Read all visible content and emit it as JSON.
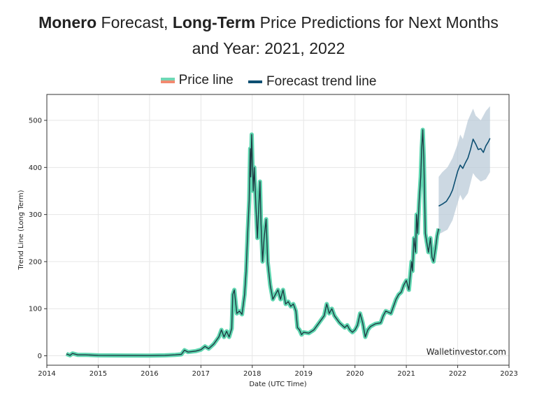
{
  "title": {
    "part1_bold": "Monero",
    "part2": " Forecast, ",
    "part3_bold": "Long-Term",
    "part4": " Price Predictions for Next Months",
    "line2": "and Year: 2021, 2022"
  },
  "colors": {
    "price_line": "#1f3b44",
    "price_halo": "#5fd6b0",
    "forecast_line": "#0d4f72",
    "forecast_band": "#b7c8d6",
    "grid": "#e6e6e6"
  },
  "chart_data": {
    "type": "line",
    "title": "Monero Forecast, Long-Term Price Predictions for Next Months and Year: 2021, 2022",
    "xlabel": "Date (UTC Time)",
    "ylabel": "Trend Line (Long Term)",
    "xlim": [
      2014,
      2023
    ],
    "ylim": [
      -20,
      555
    ],
    "x_ticks": [
      2014,
      2015,
      2016,
      2017,
      2018,
      2019,
      2020,
      2021,
      2022,
      2023
    ],
    "x_tick_labels": [
      "2014",
      "2015",
      "2016",
      "2017",
      "2018",
      "2019",
      "2020",
      "2021",
      "2022",
      "2023"
    ],
    "y_ticks": [
      0,
      100,
      200,
      300,
      400,
      500
    ],
    "y_tick_labels": [
      "0",
      "100",
      "200",
      "300",
      "400",
      "500"
    ],
    "grid": true,
    "legend": {
      "position": "top",
      "entries": [
        "Price line",
        "Forecast trend line"
      ]
    },
    "annotation": "Walletinvestor.com",
    "series": [
      {
        "name": "Price line",
        "points": [
          [
            2014.38,
            4
          ],
          [
            2014.45,
            1
          ],
          [
            2014.5,
            5
          ],
          [
            2014.6,
            2
          ],
          [
            2014.75,
            2
          ],
          [
            2015.0,
            1
          ],
          [
            2015.5,
            0.6
          ],
          [
            2016.0,
            0.5
          ],
          [
            2016.3,
            1
          ],
          [
            2016.5,
            2
          ],
          [
            2016.62,
            3
          ],
          [
            2016.68,
            12
          ],
          [
            2016.75,
            8
          ],
          [
            2016.9,
            10
          ],
          [
            2017.0,
            13
          ],
          [
            2017.08,
            20
          ],
          [
            2017.15,
            15
          ],
          [
            2017.25,
            25
          ],
          [
            2017.35,
            40
          ],
          [
            2017.4,
            55
          ],
          [
            2017.45,
            40
          ],
          [
            2017.5,
            52
          ],
          [
            2017.55,
            40
          ],
          [
            2017.6,
            58
          ],
          [
            2017.62,
            130
          ],
          [
            2017.65,
            140
          ],
          [
            2017.7,
            90
          ],
          [
            2017.75,
            95
          ],
          [
            2017.8,
            88
          ],
          [
            2017.85,
            130
          ],
          [
            2017.88,
            180
          ],
          [
            2017.91,
            260
          ],
          [
            2017.94,
            330
          ],
          [
            2017.96,
            440
          ],
          [
            2017.97,
            380
          ],
          [
            2017.99,
            470
          ],
          [
            2018.0,
            420
          ],
          [
            2018.02,
            350
          ],
          [
            2018.04,
            400
          ],
          [
            2018.07,
            320
          ],
          [
            2018.1,
            250
          ],
          [
            2018.12,
            300
          ],
          [
            2018.15,
            370
          ],
          [
            2018.17,
            280
          ],
          [
            2018.2,
            200
          ],
          [
            2018.23,
            250
          ],
          [
            2018.27,
            290
          ],
          [
            2018.3,
            200
          ],
          [
            2018.35,
            150
          ],
          [
            2018.4,
            120
          ],
          [
            2018.45,
            130
          ],
          [
            2018.5,
            140
          ],
          [
            2018.55,
            120
          ],
          [
            2018.6,
            140
          ],
          [
            2018.65,
            110
          ],
          [
            2018.7,
            115
          ],
          [
            2018.75,
            105
          ],
          [
            2018.8,
            110
          ],
          [
            2018.85,
            95
          ],
          [
            2018.88,
            60
          ],
          [
            2018.92,
            55
          ],
          [
            2018.96,
            45
          ],
          [
            2019.0,
            50
          ],
          [
            2019.1,
            48
          ],
          [
            2019.2,
            55
          ],
          [
            2019.3,
            70
          ],
          [
            2019.4,
            85
          ],
          [
            2019.45,
            110
          ],
          [
            2019.5,
            90
          ],
          [
            2019.55,
            100
          ],
          [
            2019.6,
            85
          ],
          [
            2019.7,
            70
          ],
          [
            2019.8,
            60
          ],
          [
            2019.85,
            65
          ],
          [
            2019.9,
            55
          ],
          [
            2019.95,
            50
          ],
          [
            2020.0,
            55
          ],
          [
            2020.05,
            65
          ],
          [
            2020.1,
            90
          ],
          [
            2020.15,
            70
          ],
          [
            2020.2,
            40
          ],
          [
            2020.25,
            55
          ],
          [
            2020.3,
            62
          ],
          [
            2020.4,
            68
          ],
          [
            2020.5,
            70
          ],
          [
            2020.55,
            85
          ],
          [
            2020.6,
            95
          ],
          [
            2020.7,
            90
          ],
          [
            2020.8,
            120
          ],
          [
            2020.85,
            130
          ],
          [
            2020.9,
            135
          ],
          [
            2020.95,
            150
          ],
          [
            2021.0,
            160
          ],
          [
            2021.05,
            140
          ],
          [
            2021.1,
            200
          ],
          [
            2021.12,
            180
          ],
          [
            2021.15,
            250
          ],
          [
            2021.18,
            220
          ],
          [
            2021.2,
            300
          ],
          [
            2021.22,
            260
          ],
          [
            2021.25,
            330
          ],
          [
            2021.28,
            380
          ],
          [
            2021.3,
            440
          ],
          [
            2021.32,
            480
          ],
          [
            2021.34,
            420
          ],
          [
            2021.37,
            260
          ],
          [
            2021.4,
            240
          ],
          [
            2021.43,
            220
          ],
          [
            2021.47,
            250
          ],
          [
            2021.5,
            210
          ],
          [
            2021.53,
            200
          ],
          [
            2021.57,
            230
          ],
          [
            2021.6,
            255
          ],
          [
            2021.63,
            270
          ]
        ]
      },
      {
        "name": "Forecast trend line",
        "points": [
          [
            2021.63,
            318
          ],
          [
            2021.7,
            322
          ],
          [
            2021.78,
            328
          ],
          [
            2021.85,
            340
          ],
          [
            2021.9,
            352
          ],
          [
            2021.95,
            372
          ],
          [
            2022.0,
            392
          ],
          [
            2022.05,
            405
          ],
          [
            2022.1,
            398
          ],
          [
            2022.15,
            410
          ],
          [
            2022.2,
            420
          ],
          [
            2022.25,
            438
          ],
          [
            2022.3,
            460
          ],
          [
            2022.35,
            450
          ],
          [
            2022.4,
            438
          ],
          [
            2022.45,
            440
          ],
          [
            2022.5,
            432
          ],
          [
            2022.55,
            446
          ],
          [
            2022.6,
            455
          ],
          [
            2022.63,
            462
          ]
        ]
      },
      {
        "name": "Forecast band",
        "upper": [
          [
            2021.63,
            380
          ],
          [
            2021.7,
            390
          ],
          [
            2021.8,
            400
          ],
          [
            2021.9,
            420
          ],
          [
            2022.0,
            450
          ],
          [
            2022.05,
            470
          ],
          [
            2022.1,
            460
          ],
          [
            2022.2,
            500
          ],
          [
            2022.3,
            525
          ],
          [
            2022.35,
            510
          ],
          [
            2022.45,
            500
          ],
          [
            2022.55,
            520
          ],
          [
            2022.63,
            530
          ]
        ],
        "lower": [
          [
            2021.63,
            258
          ],
          [
            2021.7,
            262
          ],
          [
            2021.8,
            268
          ],
          [
            2021.9,
            288
          ],
          [
            2022.0,
            325
          ],
          [
            2022.05,
            342
          ],
          [
            2022.1,
            330
          ],
          [
            2022.2,
            345
          ],
          [
            2022.3,
            388
          ],
          [
            2022.35,
            380
          ],
          [
            2022.45,
            370
          ],
          [
            2022.55,
            375
          ],
          [
            2022.63,
            390
          ]
        ]
      }
    ]
  }
}
